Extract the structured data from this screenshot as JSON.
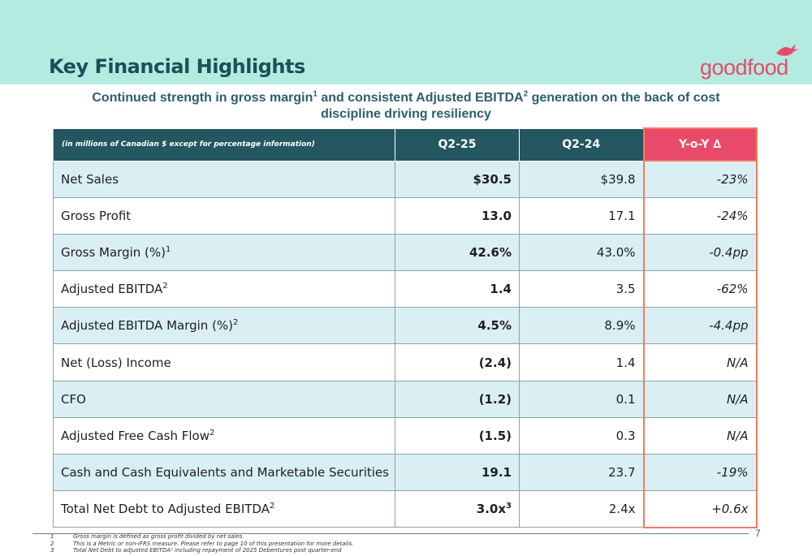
{
  "header": {
    "title": "Key Financial Highlights",
    "logo_text": "goodfood",
    "subtitle_part1": "Continued strength in gross margin",
    "subtitle_sup1": "1",
    "subtitle_part2": " and consistent Adjusted EBITDA",
    "subtitle_sup2": "2",
    "subtitle_part3": " generation on the back of cost discipline driving resiliency"
  },
  "colors": {
    "band": "#b3ebe1",
    "title": "#1d4f57",
    "table_header": "#24575f",
    "accent_pink": "#ea4a6a",
    "highlight_border": "#f07b60",
    "row_tint": "#d9eff3"
  },
  "table": {
    "note": "(in millions of Canadian $ except for percentage information)",
    "col_current": "Q2-25",
    "col_prior": "Q2-24",
    "col_change": "Y-o-Y ∆",
    "rows": [
      {
        "label": "Net Sales",
        "sup": "",
        "current": "$30.5",
        "current_sup": "",
        "prior": "$39.8",
        "change": "-23%"
      },
      {
        "label": "Gross Profit",
        "sup": "",
        "current": "13.0",
        "current_sup": "",
        "prior": "17.1",
        "change": "-24%"
      },
      {
        "label": "Gross Margin (%)",
        "sup": "1",
        "current": "42.6%",
        "current_sup": "",
        "prior": "43.0%",
        "change": "-0.4pp"
      },
      {
        "label": "Adjusted EBITDA",
        "sup": "2",
        "current": "1.4",
        "current_sup": "",
        "prior": "3.5",
        "change": "-62%"
      },
      {
        "label": "Adjusted EBITDA Margin (%)",
        "sup": "2",
        "current": "4.5%",
        "current_sup": "",
        "prior": "8.9%",
        "change": "-4.4pp"
      },
      {
        "label": "Net (Loss) Income",
        "sup": "",
        "current": "(2.4)",
        "current_sup": "",
        "prior": "1.4",
        "change": "N/A"
      },
      {
        "label": "CFO",
        "sup": "",
        "current": "(1.2)",
        "current_sup": "",
        "prior": "0.1",
        "change": "N/A"
      },
      {
        "label": "Adjusted Free Cash Flow",
        "sup": "2",
        "current": "(1.5)",
        "current_sup": "",
        "prior": "0.3",
        "change": "N/A"
      },
      {
        "label": "Cash and Cash Equivalents and Marketable Securities",
        "sup": "",
        "current": "19.1",
        "current_sup": "",
        "prior": "23.7",
        "change": "-19%"
      },
      {
        "label": "Total Net Debt to Adjusted EBITDA",
        "sup": "2",
        "current": "3.0x",
        "current_sup": "3",
        "prior": "2.4x",
        "change": "+0.6x"
      }
    ]
  },
  "footer": {
    "page_number": "7",
    "notes": [
      {
        "num": "1",
        "text": "Gross margin is defined as gross profit divided by net sales."
      },
      {
        "num": "2",
        "text": "This is a Metric or non-IFRS measure. Please refer to page 10 of this presentation for more details."
      },
      {
        "num": "3",
        "text": "Total Net Debt to adjusted EBITDA² including repayment of 2025 Debentures post quarter-end"
      }
    ]
  }
}
